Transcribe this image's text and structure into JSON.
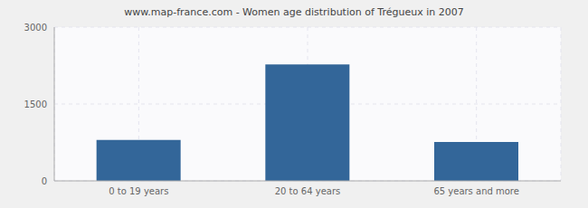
{
  "chart_data": {
    "type": "bar",
    "title": "www.map-france.com - Women age distribution of Trégueux in 2007",
    "categories": [
      "0 to 19 years",
      "20 to 64 years",
      "65 years and more"
    ],
    "values": [
      800,
      2270,
      760
    ],
    "color": "#336699",
    "ylim": [
      0,
      3000
    ],
    "yticks": [
      0,
      1500,
      3000
    ],
    "grid": true
  }
}
